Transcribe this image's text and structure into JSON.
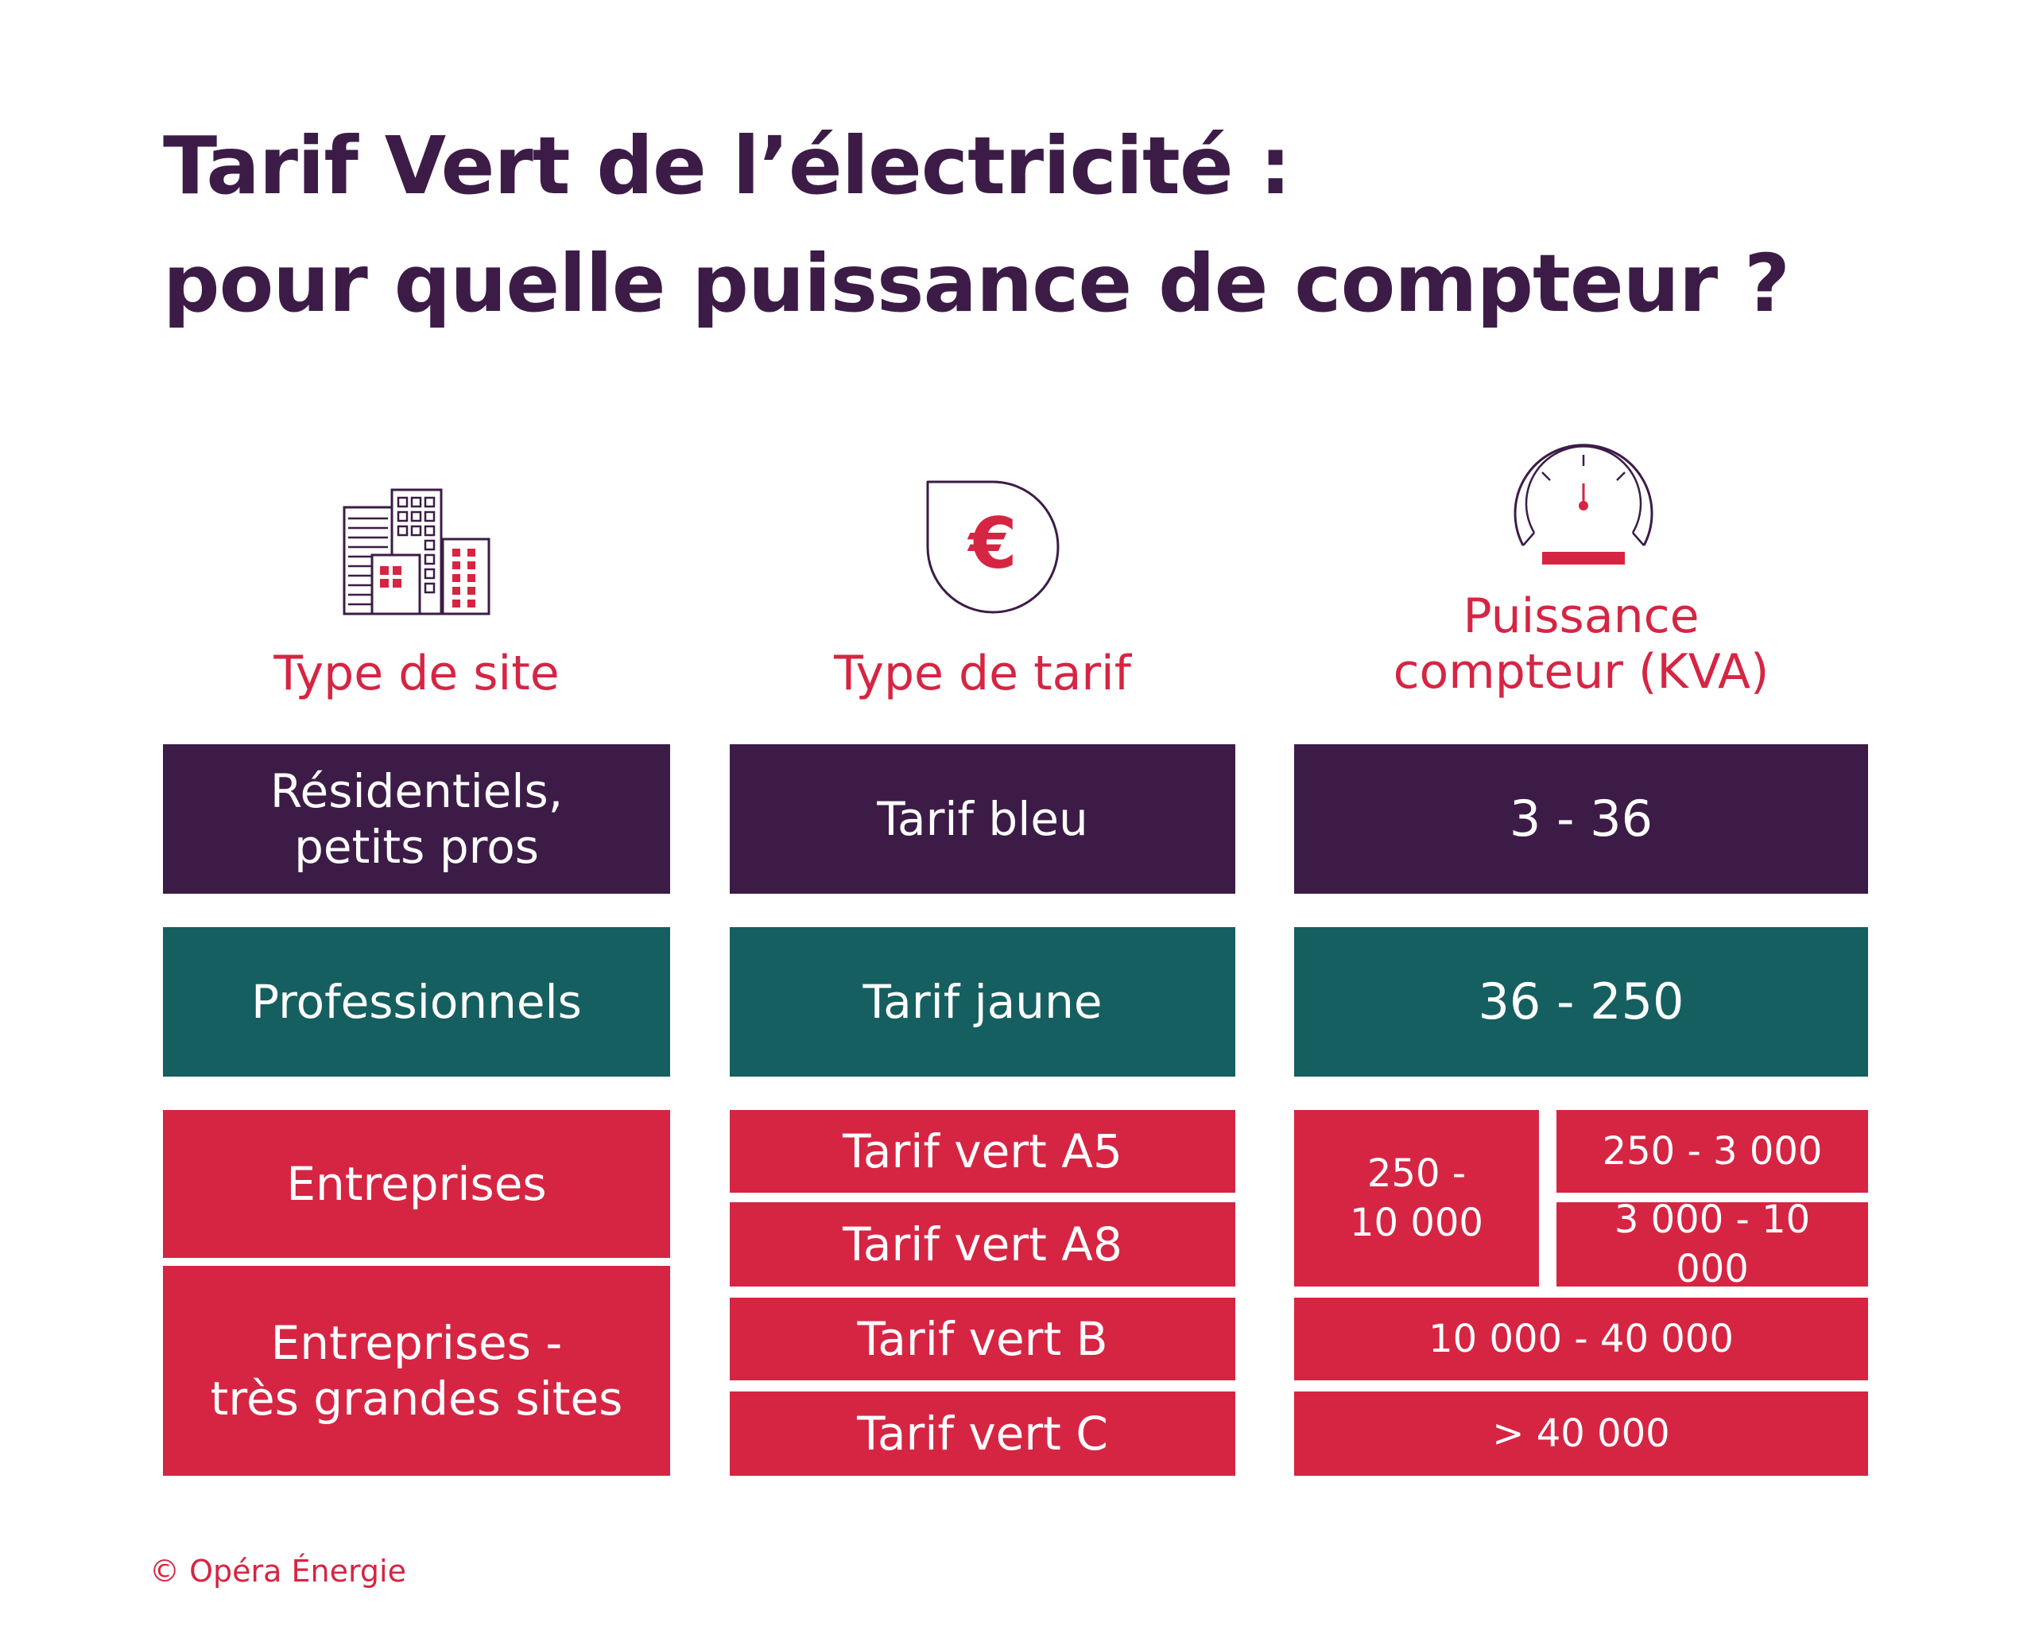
{
  "title": {
    "line1": "Tarif Vert de l’électricité :",
    "line2": "pour quelle puissance de compteur ?"
  },
  "columns": {
    "site": {
      "label": "Type de site",
      "icon": "buildings-icon"
    },
    "tarif": {
      "label": "Type de tarif",
      "icon": "euro-drop-icon"
    },
    "puissance": {
      "label_line1": "Puissance",
      "label_line2": "compteur (KVA)",
      "icon": "meter-gauge-icon"
    }
  },
  "rows": {
    "residentiels": {
      "site_line1": "Résidentiels,",
      "site_line2": "petits pros",
      "tarif": "Tarif bleu",
      "puissance": "3 - 36"
    },
    "professionnels": {
      "site": "Professionnels",
      "tarif": "Tarif jaune",
      "puissance": "36 - 250"
    },
    "entreprises": {
      "site": "Entreprises",
      "tarif_a5": "Tarif vert A5",
      "tarif_a8": "Tarif vert A8",
      "puissance_group_line1": "250 -",
      "puissance_group_line2": "10 000",
      "puissance_a5": "250 - 3 000",
      "puissance_a8": "3 000 - 10 000"
    },
    "tres_grandes": {
      "site_line1": "Entreprises -",
      "site_line2": "très grandes sites",
      "tarif_b": "Tarif vert B",
      "tarif_c": "Tarif vert C",
      "puissance_b": "10 000 - 40 000",
      "puissance_c": "> 40 000"
    }
  },
  "footer": "© Opéra Énergie",
  "colors": {
    "title": "#3c1c47",
    "accent_red": "#d62543",
    "purple": "#3c1c47",
    "teal": "#155f60"
  }
}
